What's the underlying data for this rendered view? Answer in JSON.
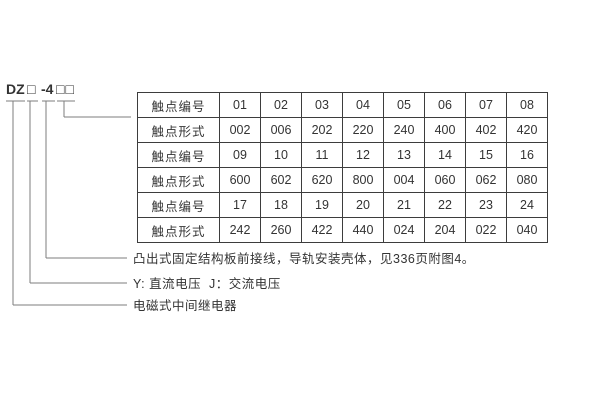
{
  "model_code": {
    "prefix": "DZ",
    "placeholder1": "□",
    "dash_number": "-4",
    "placeholder2": "□□"
  },
  "table": {
    "rows": [
      {
        "label": "触点编号",
        "values": [
          "01",
          "02",
          "03",
          "04",
          "05",
          "06",
          "07",
          "08"
        ]
      },
      {
        "label": "触点形式",
        "values": [
          "002",
          "006",
          "202",
          "220",
          "240",
          "400",
          "402",
          "420"
        ]
      },
      {
        "label": "触点编号",
        "values": [
          "09",
          "10",
          "11",
          "12",
          "13",
          "14",
          "15",
          "16"
        ]
      },
      {
        "label": "触点形式",
        "values": [
          "600",
          "602",
          "620",
          "800",
          "004",
          "060",
          "062",
          "080"
        ]
      },
      {
        "label": "触点编号",
        "values": [
          "17",
          "18",
          "19",
          "20",
          "21",
          "22",
          "23",
          "24"
        ]
      },
      {
        "label": "触点形式",
        "values": [
          "242",
          "260",
          "422",
          "440",
          "024",
          "204",
          "022",
          "040"
        ]
      }
    ]
  },
  "annotations": [
    {
      "text": "凸出式固定结构板前接线，导轨安装壳体，见336页附图4。"
    },
    {
      "text": "Y: 直流电压  J：交流电压"
    },
    {
      "text": "电磁式中间继电器"
    }
  ],
  "colors": {
    "text-color": "#333333",
    "line-color": "#7d7d7d",
    "border-color": "#3d3d3d",
    "bg-color": "#ffffff"
  }
}
